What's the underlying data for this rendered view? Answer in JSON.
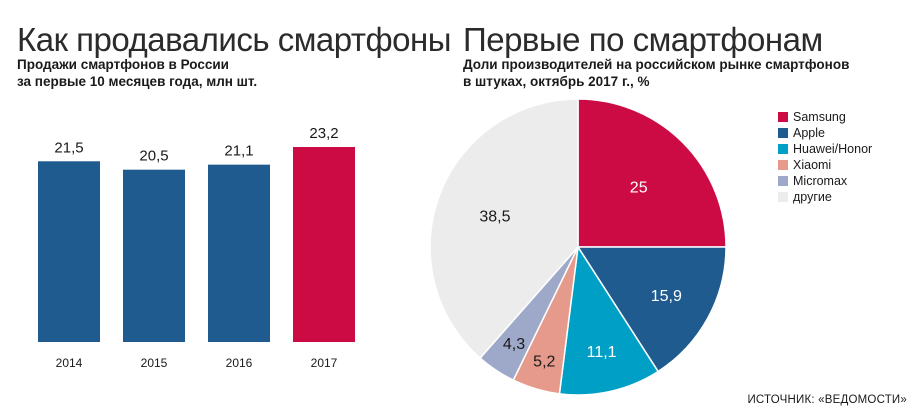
{
  "bar_panel": {
    "title": "Как продавались смартфоны",
    "subtitle_lines": [
      "Продажи смартфонов в России",
      "за первые 10 месяцев года, млн шт."
    ]
  },
  "pie_panel": {
    "title": "Первые по смартфонам",
    "subtitle_lines": [
      "Доли производителей на российском рынке смартфонов",
      "в штуках, октябрь 2017 г., %"
    ]
  },
  "source": "ИСТОЧНИК: «ВЕДОМОСТИ»",
  "chart_data": [
    {
      "type": "bar",
      "categories": [
        "2014",
        "2015",
        "2016",
        "2017"
      ],
      "values": [
        21.5,
        20.5,
        21.1,
        23.2
      ],
      "value_labels": [
        "21,5",
        "20,5",
        "21,1",
        "23,2"
      ],
      "colors": [
        "#1f5b8e",
        "#1f5b8e",
        "#1f5b8e",
        "#cc0a43"
      ],
      "ylim": [
        0,
        23.2
      ]
    },
    {
      "type": "pie",
      "slices": [
        {
          "label": "Samsung",
          "value": 25,
          "value_label": "25",
          "color": "#cc0a43"
        },
        {
          "label": "Apple",
          "value": 15.9,
          "value_label": "15,9",
          "color": "#1f5b8e"
        },
        {
          "label": "Huawei/Honor",
          "value": 11.1,
          "value_label": "11,1",
          "color": "#00a0c6"
        },
        {
          "label": "Xiaomi",
          "value": 5.2,
          "value_label": "5,2",
          "color": "#e69a8c"
        },
        {
          "label": "Micromax",
          "value": 4.3,
          "value_label": "4,3",
          "color": "#9ea9c9"
        },
        {
          "label": "другие",
          "value": 38.5,
          "value_label": "38,5",
          "color": "#ececec"
        }
      ],
      "start_angle": "12 o'clock",
      "direction": "clockwise",
      "legend_position": "right"
    }
  ]
}
